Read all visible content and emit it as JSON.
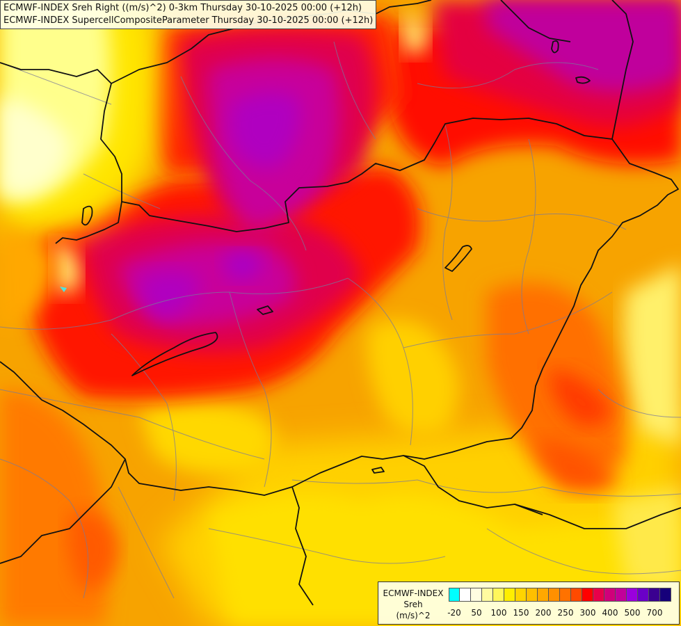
{
  "header": {
    "line1": "ECMWF-INDEX Sreh Right ((m/s)^2) 0-3km Thursday 30-10-2025 00:00 (+12h)",
    "line2": "ECMWF-INDEX SupercellCompositeParameter Thursday 30-10-2025 00:00 (+12h)"
  },
  "legend": {
    "title_line1": "ECMWF-INDEX",
    "title_line2": "Sreh",
    "title_line3": "(m/s)^2",
    "colors": [
      "#00ffff",
      "#ffffff",
      "#fffde0",
      "#fffba0",
      "#fff75a",
      "#ffee00",
      "#ffd400",
      "#ffbf00",
      "#ffa800",
      "#ff9000",
      "#ff7200",
      "#ff4a00",
      "#ff0000",
      "#e8004a",
      "#d0007a",
      "#c2009a",
      "#9a00dd",
      "#6a00c8",
      "#3a0090",
      "#16007a"
    ],
    "ticks": [
      {
        "label": "-20",
        "pos": 0
      },
      {
        "label": "50",
        "pos": 2
      },
      {
        "label": "100",
        "pos": 4
      },
      {
        "label": "150",
        "pos": 6
      },
      {
        "label": "200",
        "pos": 8
      },
      {
        "label": "250",
        "pos": 10
      },
      {
        "label": "300",
        "pos": 12
      },
      {
        "label": "400",
        "pos": 14
      },
      {
        "label": "500",
        "pos": 16
      },
      {
        "label": "700",
        "pos": 18
      }
    ]
  }
}
